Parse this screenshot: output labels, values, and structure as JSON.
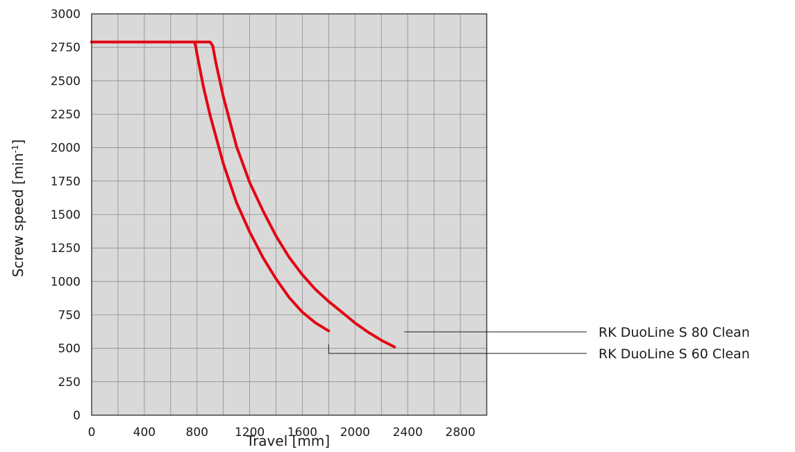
{
  "chart_data": {
    "type": "line",
    "xlabel": "Travel [mm]",
    "ylabel_main": "Screw speed [min",
    "ylabel_sup": "-1",
    "ylabel_close": "]",
    "xlim": [
      0,
      3000
    ],
    "ylim": [
      0,
      3000
    ],
    "x_ticks": [
      0,
      400,
      800,
      1200,
      1600,
      2000,
      2400,
      2800
    ],
    "y_ticks": [
      0,
      250,
      500,
      750,
      1000,
      1250,
      1500,
      1750,
      2000,
      2250,
      2500,
      2750,
      3000
    ],
    "x_gridlines": [
      0,
      200,
      400,
      600,
      800,
      1000,
      1200,
      1400,
      1600,
      1800,
      2000,
      2200,
      2400,
      2600,
      2800,
      3000
    ],
    "y_gridlines": [
      0,
      250,
      500,
      750,
      1000,
      1250,
      1500,
      1750,
      2000,
      2250,
      2500,
      2750,
      3000
    ],
    "grid": true,
    "background_color": "#d9d9d9",
    "line_color": "#e30613",
    "series": [
      {
        "name": "RK DuoLine S 80 Clean",
        "x": [
          0,
          900,
          920,
          940,
          1000,
          1100,
          1200,
          1300,
          1400,
          1500,
          1600,
          1700,
          1800,
          1900,
          2000,
          2100,
          2200,
          2300
        ],
        "y": [
          2790,
          2790,
          2760,
          2650,
          2380,
          2010,
          1740,
          1530,
          1340,
          1180,
          1050,
          940,
          850,
          770,
          690,
          620,
          560,
          510
        ]
      },
      {
        "name": "RK DuoLine S 60 Clean",
        "x": [
          0,
          780,
          790,
          800,
          850,
          900,
          1000,
          1100,
          1200,
          1300,
          1400,
          1500,
          1600,
          1700,
          1800
        ],
        "y": [
          2790,
          2790,
          2760,
          2700,
          2450,
          2240,
          1880,
          1590,
          1370,
          1180,
          1020,
          880,
          770,
          690,
          630
        ]
      }
    ],
    "legend": [
      {
        "label": "RK DuoLine S 80 Clean",
        "anchor_x": 2320,
        "anchor_y": 510
      },
      {
        "label": "RK DuoLine S 60 Clean",
        "anchor_x": 1800,
        "anchor_y": 530,
        "elbow_y": 340
      }
    ]
  }
}
